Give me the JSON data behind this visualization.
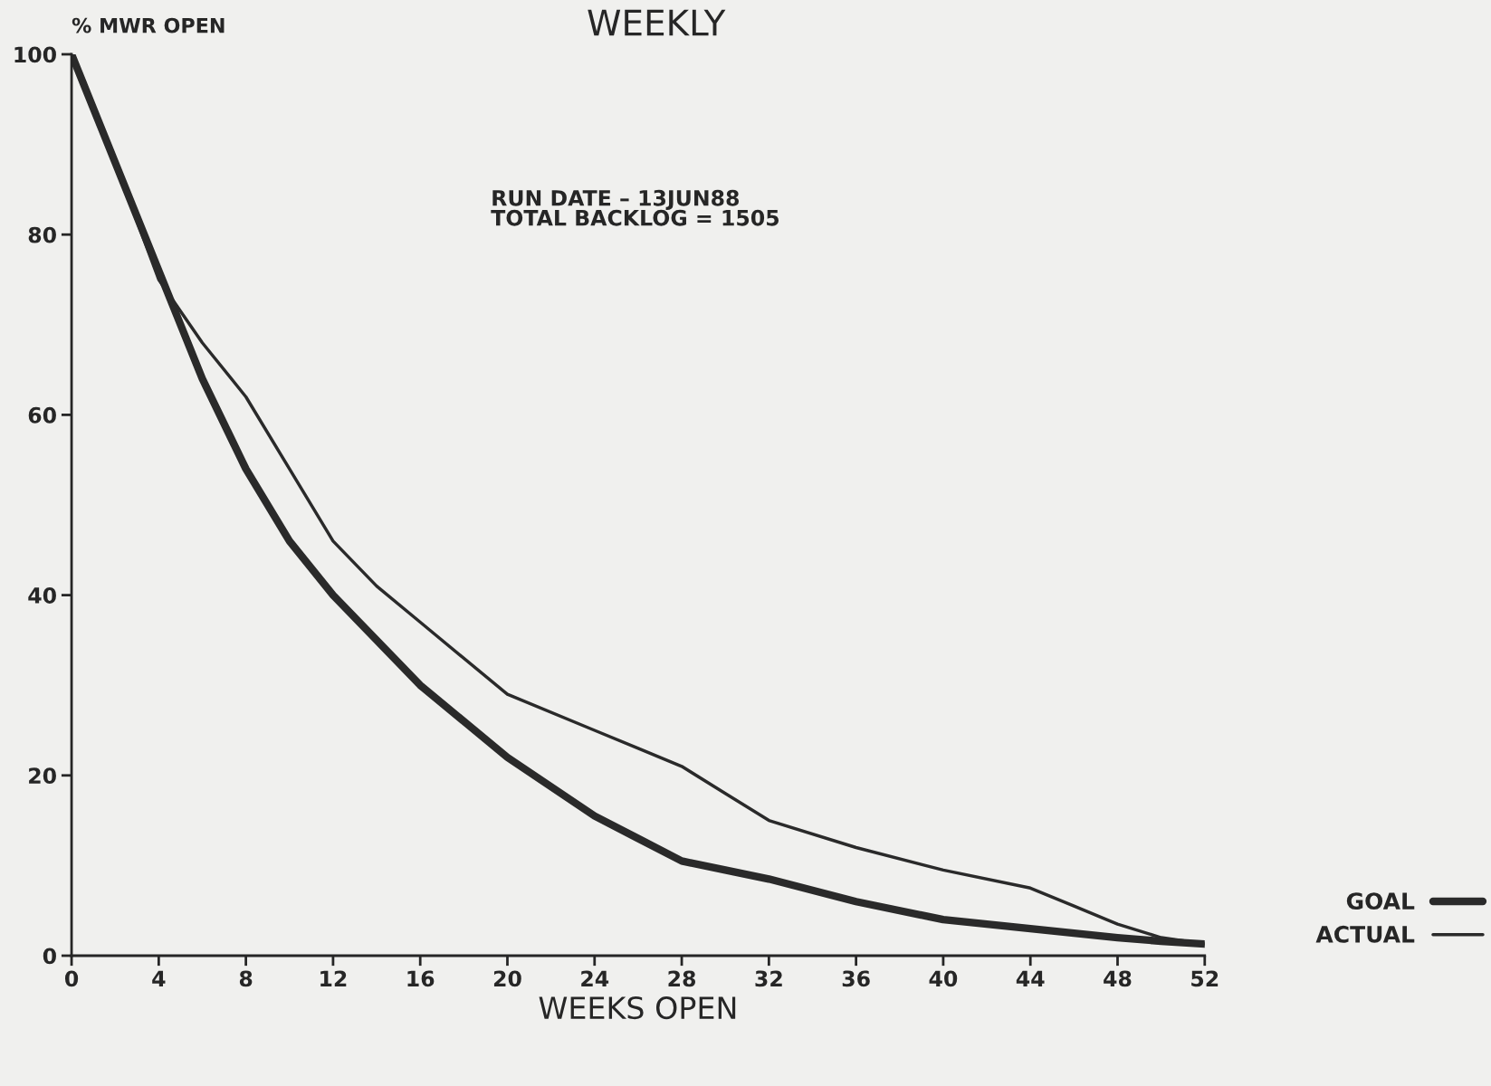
{
  "chart_data": {
    "type": "line",
    "title": "WEEKLY",
    "xlabel": "WEEKS OPEN",
    "ylabel": "% MWR OPEN",
    "annotations": [
      "RUN DATE – 13JUN88\nTOTAL BACKLOG = 1505"
    ],
    "x": [
      0,
      2,
      4,
      6,
      8,
      10,
      12,
      14,
      16,
      20,
      24,
      26,
      28,
      30,
      32,
      36,
      40,
      44,
      46,
      48,
      50,
      52
    ],
    "series": [
      {
        "name": "GOAL",
        "color": "#2a2a2a",
        "values": [
          100,
          88,
          76,
          64,
          54,
          46,
          40,
          35,
          30,
          22,
          15.5,
          13,
          10.5,
          9.5,
          8.5,
          6,
          4,
          3,
          2.5,
          2,
          1.6,
          1.3
        ]
      },
      {
        "name": "ACTUAL",
        "color": "#2a2a2a",
        "values": [
          100,
          88,
          75,
          68,
          62,
          54,
          46,
          41,
          37,
          29,
          25,
          23,
          21,
          18,
          15,
          12,
          9.5,
          7.5,
          5.5,
          3.5,
          2,
          1.3
        ]
      }
    ],
    "xlim": [
      0,
      52
    ],
    "ylim": [
      0,
      100
    ],
    "xticks": [
      0,
      4,
      8,
      12,
      16,
      20,
      24,
      28,
      32,
      36,
      40,
      44,
      48,
      52
    ],
    "yticks": [
      0,
      20,
      40,
      60,
      80,
      100
    ],
    "grid": false,
    "legend": "right",
    "marker": "none",
    "line_style": "solid"
  }
}
